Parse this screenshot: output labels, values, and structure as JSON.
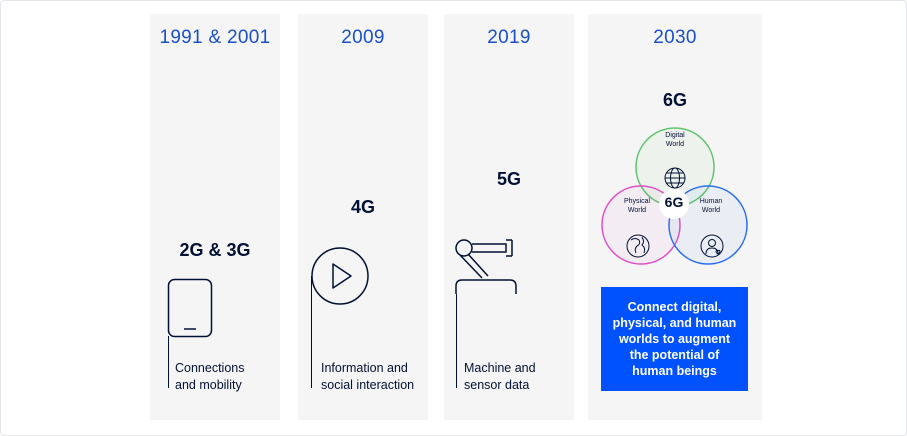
{
  "columns": [
    {
      "year": "1991 & 2001",
      "generation": "2G & 3G",
      "description_lines": [
        "Connections",
        "and mobility"
      ],
      "icon": "mobile-phone-icon"
    },
    {
      "year": "2009",
      "generation": "4G",
      "description_lines": [
        "Information and",
        "social interaction"
      ],
      "icon": "play-button-icon"
    },
    {
      "year": "2019",
      "generation": "5G",
      "description_lines": [
        "Machine and",
        "sensor data"
      ],
      "icon": "robot-arm-icon"
    },
    {
      "year": "2030",
      "generation": "6G",
      "venn": {
        "center_label": "6G",
        "circles": [
          {
            "label_lines": [
              "Digital",
              "World"
            ],
            "color": "#5ec46a",
            "icon": "globe-icon"
          },
          {
            "label_lines": [
              "Physical",
              "World"
            ],
            "color": "#e04fc8",
            "icon": "earth-icon"
          },
          {
            "label_lines": [
              "Human",
              "World"
            ],
            "color": "#2a6ff0",
            "icon": "person-heart-icon"
          }
        ]
      },
      "callout_lines": [
        "Connect digital,",
        "physical, and human",
        "worlds to augment",
        "the potential of",
        "human beings"
      ]
    }
  ],
  "colors": {
    "year_text": "#1a4fc7",
    "dark_text": "#001135",
    "panel_bg": "#f5f5f5",
    "callout_bg": "#0052ff"
  }
}
